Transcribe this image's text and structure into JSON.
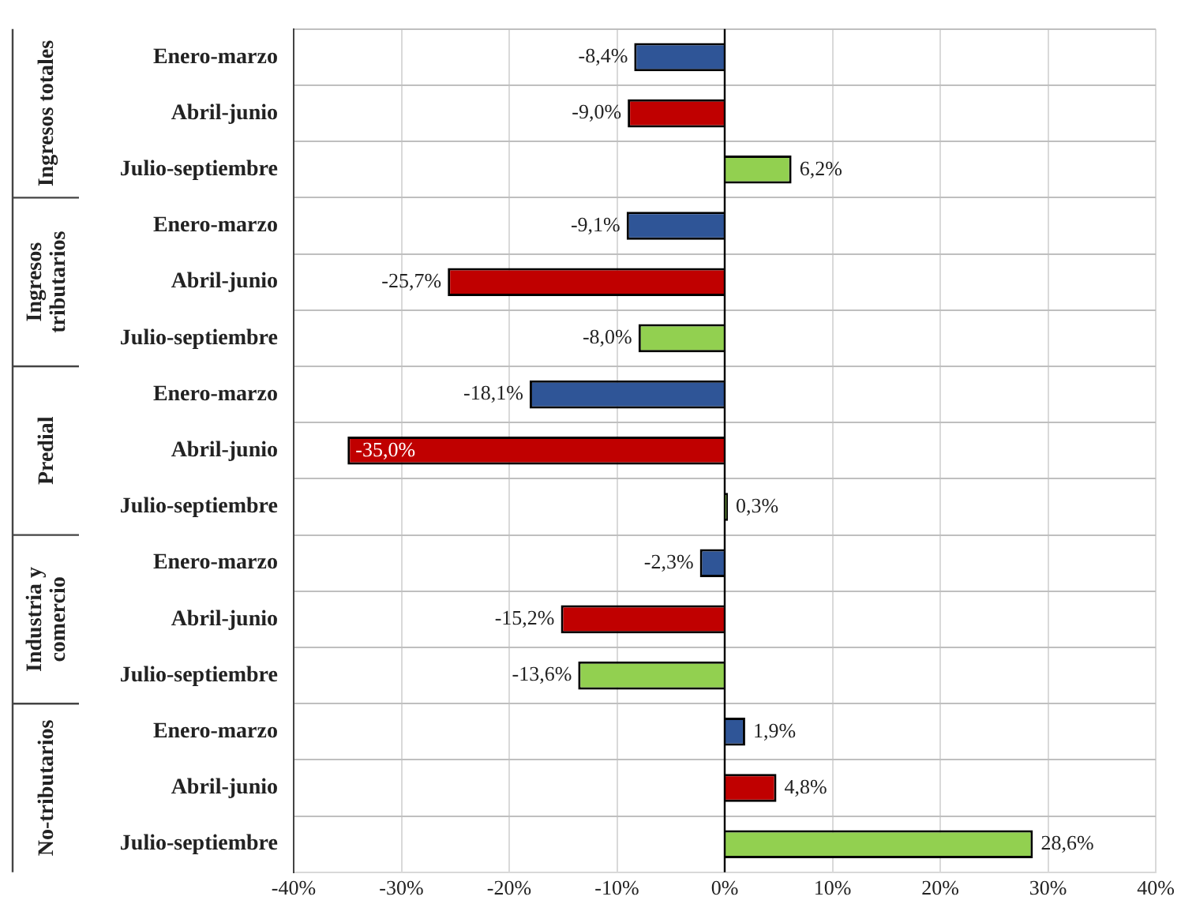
{
  "chart_data": {
    "type": "bar",
    "orientation": "horizontal",
    "categories": [
      "Enero-marzo",
      "Abril-junio",
      "Julio-septiembre",
      "Enero-marzo",
      "Abril-junio",
      "Julio-septiembre",
      "Enero-marzo",
      "Abril-junio",
      "Julio-septiembre",
      "Enero-marzo",
      "Abril-junio",
      "Julio-septiembre",
      "Enero-marzo",
      "Abril-junio",
      "Julio-septiembre"
    ],
    "values": [
      -8.4,
      -9.0,
      6.2,
      -9.1,
      -25.7,
      -8.0,
      -18.1,
      -35.0,
      0.3,
      -2.3,
      -15.2,
      -13.6,
      1.9,
      4.8,
      28.6
    ],
    "colors": [
      "#2f5597",
      "#c00000",
      "#92d050",
      "#2f5597",
      "#c00000",
      "#92d050",
      "#2f5597",
      "#c00000",
      "#92d050",
      "#2f5597",
      "#c00000",
      "#92d050",
      "#2f5597",
      "#c00000",
      "#92d050"
    ],
    "value_labels": [
      "-8,4%",
      "-9,0%",
      "6,2%",
      "-9,1%",
      "-25,7%",
      "-8,0%",
      "-18,1%",
      "-35,0%",
      "0,3%",
      "-2,3%",
      "-15,2%",
      "-13,6%",
      "1,9%",
      "4,8%",
      "28,6%"
    ],
    "xlim": [
      -40,
      40
    ],
    "xticks": [
      {
        "value": -40,
        "label": "-40%"
      },
      {
        "value": -30,
        "label": "-30%"
      },
      {
        "value": -20,
        "label": "-20%"
      },
      {
        "value": -10,
        "label": "-10%"
      },
      {
        "value": 0,
        "label": "0%"
      },
      {
        "value": 10,
        "label": "10%"
      },
      {
        "value": 20,
        "label": "20%"
      },
      {
        "value": 30,
        "label": "30%"
      },
      {
        "value": 40,
        "label": "40%"
      }
    ],
    "grid": true,
    "annotations": [
      "Ingresos totales",
      "Ingresos tributarios",
      "Predial",
      "Industria y comercio",
      "No-tributarios"
    ]
  }
}
